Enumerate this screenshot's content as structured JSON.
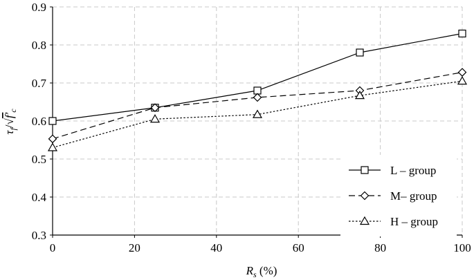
{
  "chart_data": {
    "type": "line",
    "title": "",
    "xlabel": {
      "main": "R",
      "sub": "s",
      "unit": " (%)"
    },
    "ylabel": {
      "tau": "τ",
      "tau_sub": "f",
      "sep": "/",
      "root": "√",
      "fc": "f′",
      "fc_sub": "c"
    },
    "xlim": [
      0,
      100
    ],
    "ylim": [
      0.3,
      0.9
    ],
    "xticks": [
      0,
      20,
      40,
      60,
      80,
      100
    ],
    "yticks": [
      0.3,
      0.4,
      0.5,
      0.6,
      0.7,
      0.8,
      0.9
    ],
    "x_tick_labels": [
      "0",
      "20",
      "40",
      "60",
      "80",
      "100"
    ],
    "y_tick_labels": [
      "0.3",
      "0.4",
      "0.5",
      "0.6",
      "0.7",
      "0.8",
      "0.9"
    ],
    "grid": true,
    "legend_position": "bottom-right",
    "x": [
      0,
      25,
      50,
      75,
      100
    ],
    "series": [
      {
        "name": "L – group",
        "marker": "square",
        "dash": "solid",
        "values": [
          0.6,
          0.635,
          0.68,
          0.78,
          0.83
        ]
      },
      {
        "name": "M– group",
        "marker": "diamond",
        "dash": "dashed",
        "values": [
          0.553,
          0.635,
          0.662,
          0.68,
          0.728
        ]
      },
      {
        "name": "H – group",
        "marker": "triangle",
        "dash": "dotted",
        "values": [
          0.53,
          0.605,
          0.617,
          0.667,
          0.705
        ]
      }
    ]
  }
}
